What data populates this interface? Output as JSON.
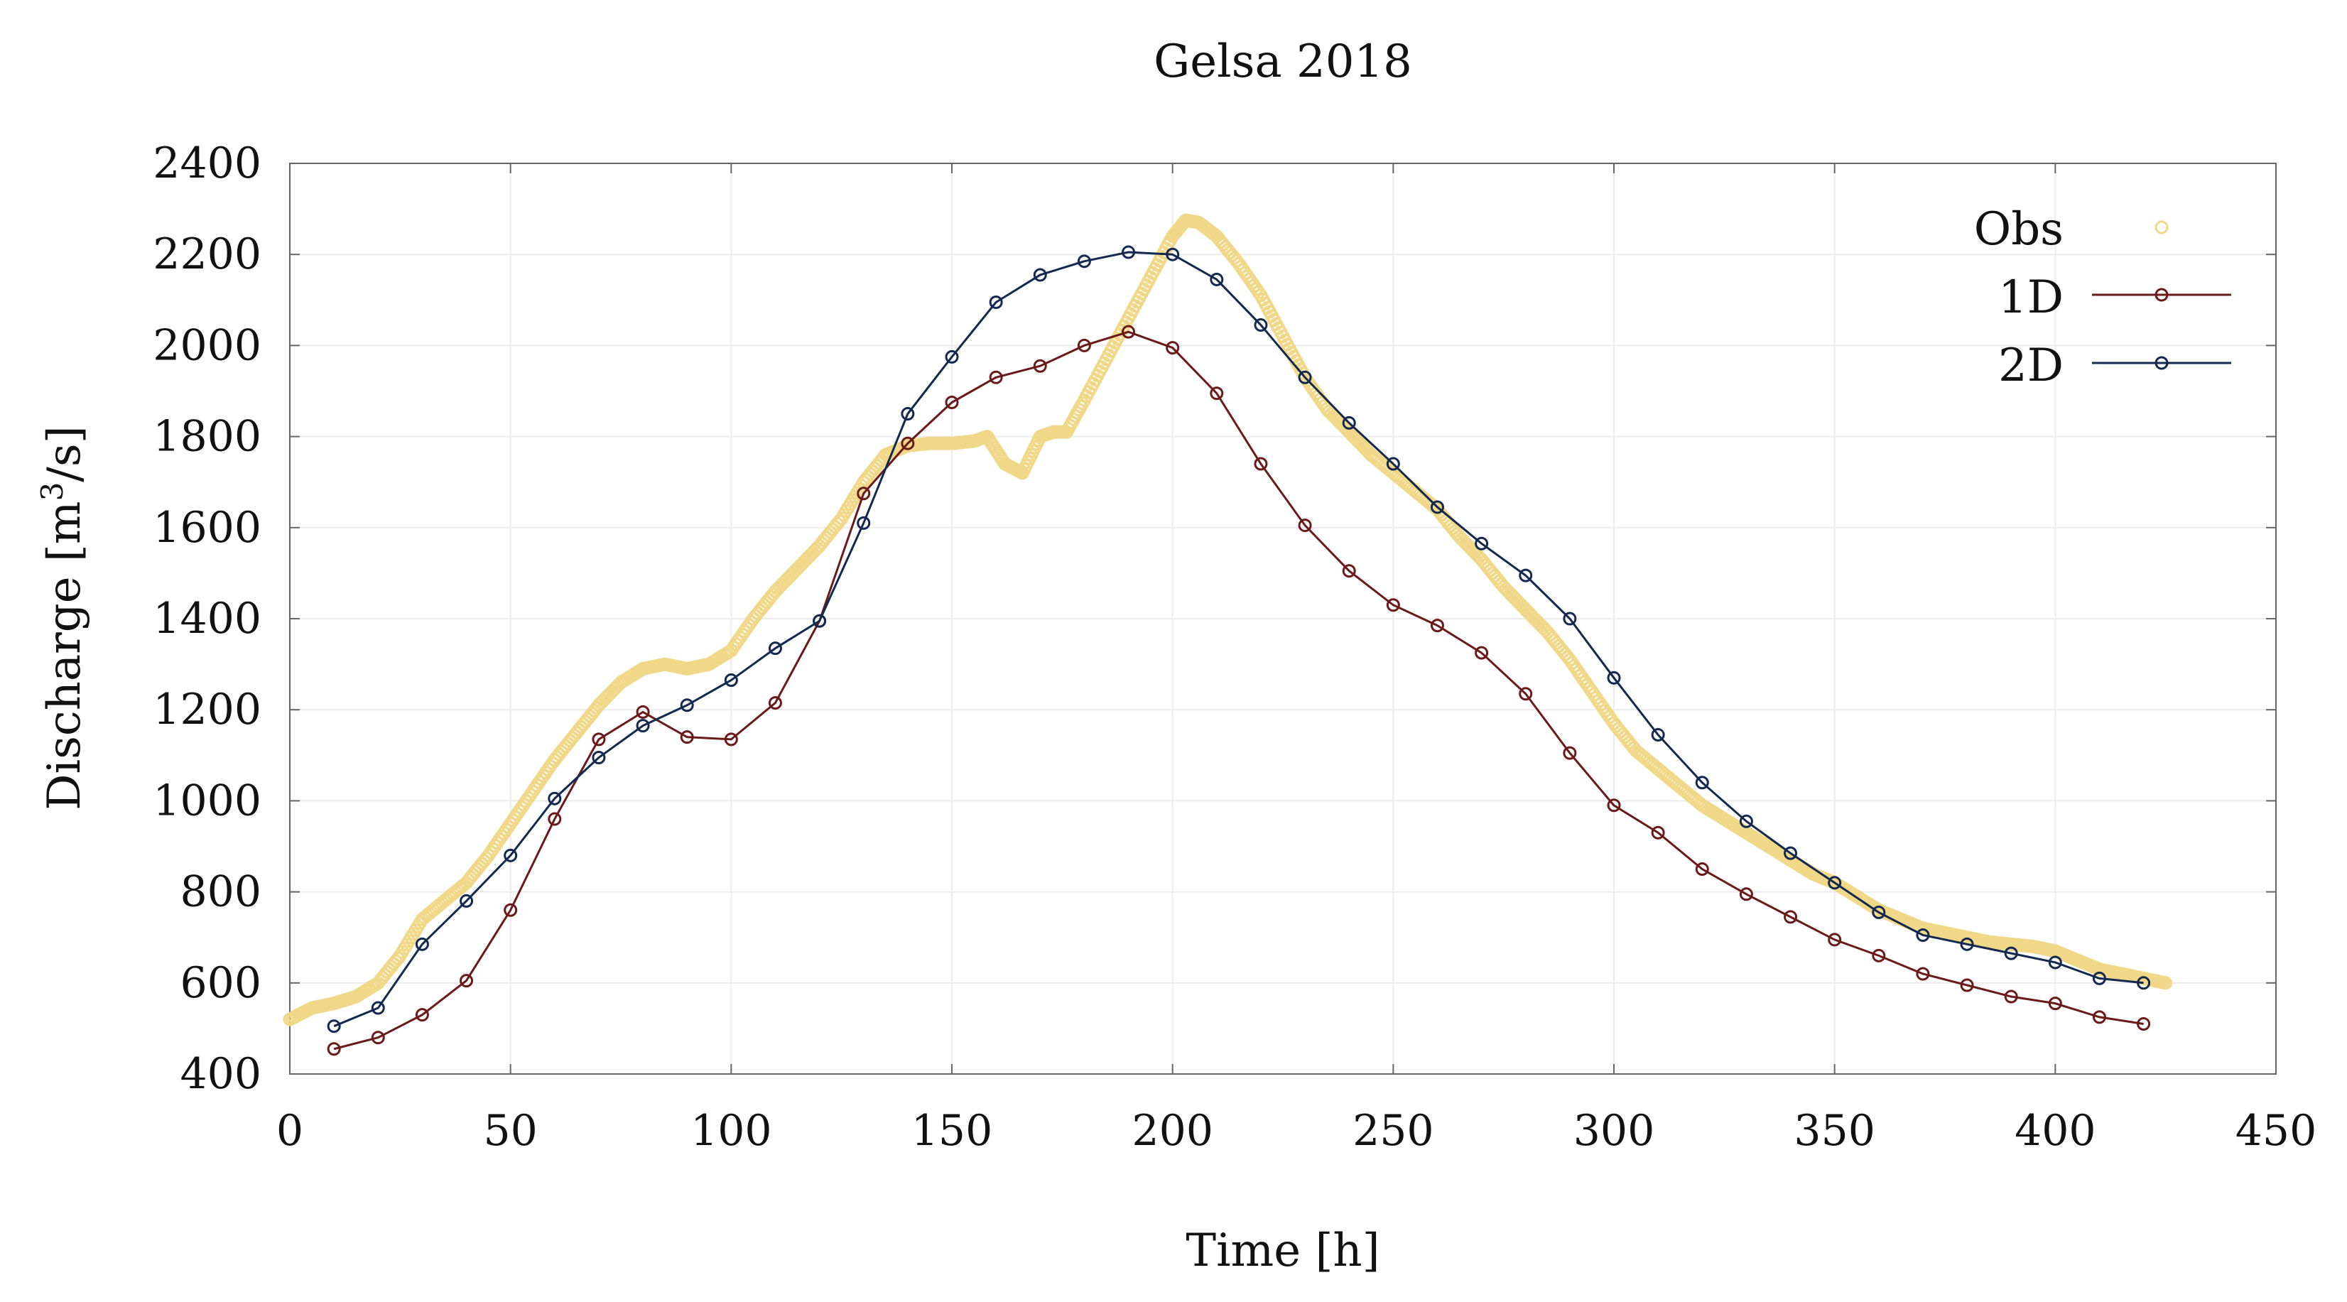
{
  "chart_data": {
    "type": "line",
    "title": "Gelsa 2018",
    "xlabel": "Time [h]",
    "ylabel_prefix": "Discharge [m",
    "ylabel_sup": "3",
    "ylabel_suffix": "/s]",
    "xlim": [
      0,
      450
    ],
    "ylim": [
      400,
      2400
    ],
    "xticks": [
      0,
      50,
      100,
      150,
      200,
      250,
      300,
      350,
      400,
      450
    ],
    "yticks": [
      400,
      600,
      800,
      1000,
      1200,
      1400,
      1600,
      1800,
      2000,
      2200,
      2400
    ],
    "grid": true,
    "legend_position": "top-right",
    "colors": {
      "obs": "#f0d888",
      "d1": "#6b1a1a",
      "d2": "#14294f"
    },
    "series": [
      {
        "name": "Obs",
        "style": "markers",
        "x": [
          0,
          5,
          10,
          15,
          20,
          25,
          30,
          35,
          40,
          45,
          50,
          55,
          60,
          65,
          70,
          75,
          80,
          85,
          90,
          95,
          100,
          105,
          110,
          115,
          120,
          125,
          130,
          135,
          140,
          145,
          150,
          155,
          158,
          162,
          166,
          170,
          173,
          176,
          180,
          185,
          190,
          195,
          200,
          203,
          206,
          210,
          215,
          220,
          225,
          230,
          235,
          240,
          245,
          250,
          255,
          260,
          265,
          270,
          275,
          280,
          285,
          290,
          295,
          300,
          305,
          310,
          315,
          320,
          325,
          330,
          335,
          340,
          345,
          350,
          355,
          360,
          365,
          370,
          375,
          380,
          385,
          390,
          395,
          400,
          405,
          410,
          415,
          420,
          425
        ],
        "y": [
          520,
          545,
          555,
          570,
          600,
          660,
          740,
          780,
          820,
          880,
          950,
          1020,
          1090,
          1150,
          1210,
          1260,
          1290,
          1300,
          1290,
          1300,
          1330,
          1400,
          1460,
          1510,
          1560,
          1620,
          1700,
          1760,
          1780,
          1785,
          1785,
          1790,
          1800,
          1740,
          1720,
          1800,
          1810,
          1810,
          1880,
          1970,
          2060,
          2150,
          2240,
          2275,
          2270,
          2240,
          2180,
          2110,
          2020,
          1930,
          1860,
          1810,
          1760,
          1720,
          1680,
          1640,
          1580,
          1530,
          1470,
          1420,
          1370,
          1310,
          1240,
          1170,
          1110,
          1070,
          1030,
          990,
          960,
          930,
          900,
          870,
          840,
          820,
          790,
          760,
          740,
          720,
          710,
          700,
          690,
          685,
          680,
          670,
          650,
          630,
          620,
          610,
          600
        ]
      },
      {
        "name": "1D",
        "style": "line-markers",
        "x": [
          10,
          20,
          30,
          40,
          50,
          60,
          70,
          80,
          90,
          100,
          110,
          120,
          130,
          140,
          150,
          160,
          170,
          180,
          190,
          200,
          210,
          220,
          230,
          240,
          250,
          260,
          270,
          280,
          290,
          300,
          310,
          320,
          330,
          340,
          350,
          360,
          370,
          380,
          390,
          400,
          410,
          420
        ],
        "y": [
          455,
          480,
          530,
          605,
          760,
          960,
          1135,
          1195,
          1140,
          1135,
          1215,
          1395,
          1675,
          1785,
          1875,
          1930,
          1955,
          2000,
          2030,
          1995,
          1895,
          1740,
          1605,
          1505,
          1430,
          1385,
          1325,
          1235,
          1105,
          990,
          930,
          850,
          795,
          745,
          695,
          660,
          620,
          595,
          570,
          555,
          525,
          510
        ]
      },
      {
        "name": "2D",
        "style": "line-markers",
        "x": [
          10,
          20,
          30,
          40,
          50,
          60,
          70,
          80,
          90,
          100,
          110,
          120,
          130,
          140,
          150,
          160,
          170,
          180,
          190,
          200,
          210,
          220,
          230,
          240,
          250,
          260,
          270,
          280,
          290,
          300,
          310,
          320,
          330,
          340,
          350,
          360,
          370,
          380,
          390,
          400,
          410,
          420
        ],
        "y": [
          505,
          545,
          685,
          780,
          880,
          1005,
          1095,
          1165,
          1210,
          1265,
          1335,
          1395,
          1610,
          1850,
          1975,
          2095,
          2155,
          2185,
          2205,
          2200,
          2145,
          2045,
          1930,
          1830,
          1740,
          1645,
          1565,
          1495,
          1400,
          1270,
          1145,
          1040,
          955,
          885,
          820,
          755,
          705,
          685,
          665,
          645,
          610,
          600
        ]
      }
    ]
  }
}
